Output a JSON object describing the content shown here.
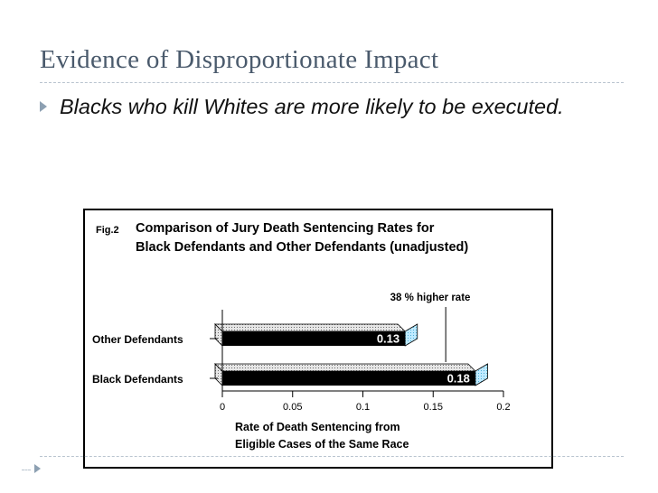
{
  "slide": {
    "title": "Evidence of Disproportionate Impact",
    "bullet": "Blacks who kill Whites are more likely to be executed.",
    "accent_color": "#4a5a6c",
    "bullet_icon": "triangle-arrow-icon"
  },
  "chart_data": {
    "type": "bar",
    "orientation": "horizontal",
    "fig_label": "Fig.2",
    "title_line1": "Comparison of Jury Death Sentencing Rates for",
    "title_line2": "Black Defendants and Other Defendants (unadjusted)",
    "categories": [
      "Other Defendants",
      "Black Defendants"
    ],
    "values": [
      0.13,
      0.18
    ],
    "value_labels": [
      "0.13",
      "0.18"
    ],
    "annotation": "38 % higher rate",
    "x_ticks": [
      "0",
      "0.05",
      "0.1",
      "0.15",
      "0.2"
    ],
    "xlim": [
      0,
      0.2
    ],
    "xlabel_line1": "Rate of Death Sentencing from",
    "xlabel_line2": "Eligible Cases of the Same Race",
    "grid": false,
    "bar_color": "#000000",
    "bar_top_color": "#c8c8c8",
    "bar_end_color": "#a7dff7"
  }
}
